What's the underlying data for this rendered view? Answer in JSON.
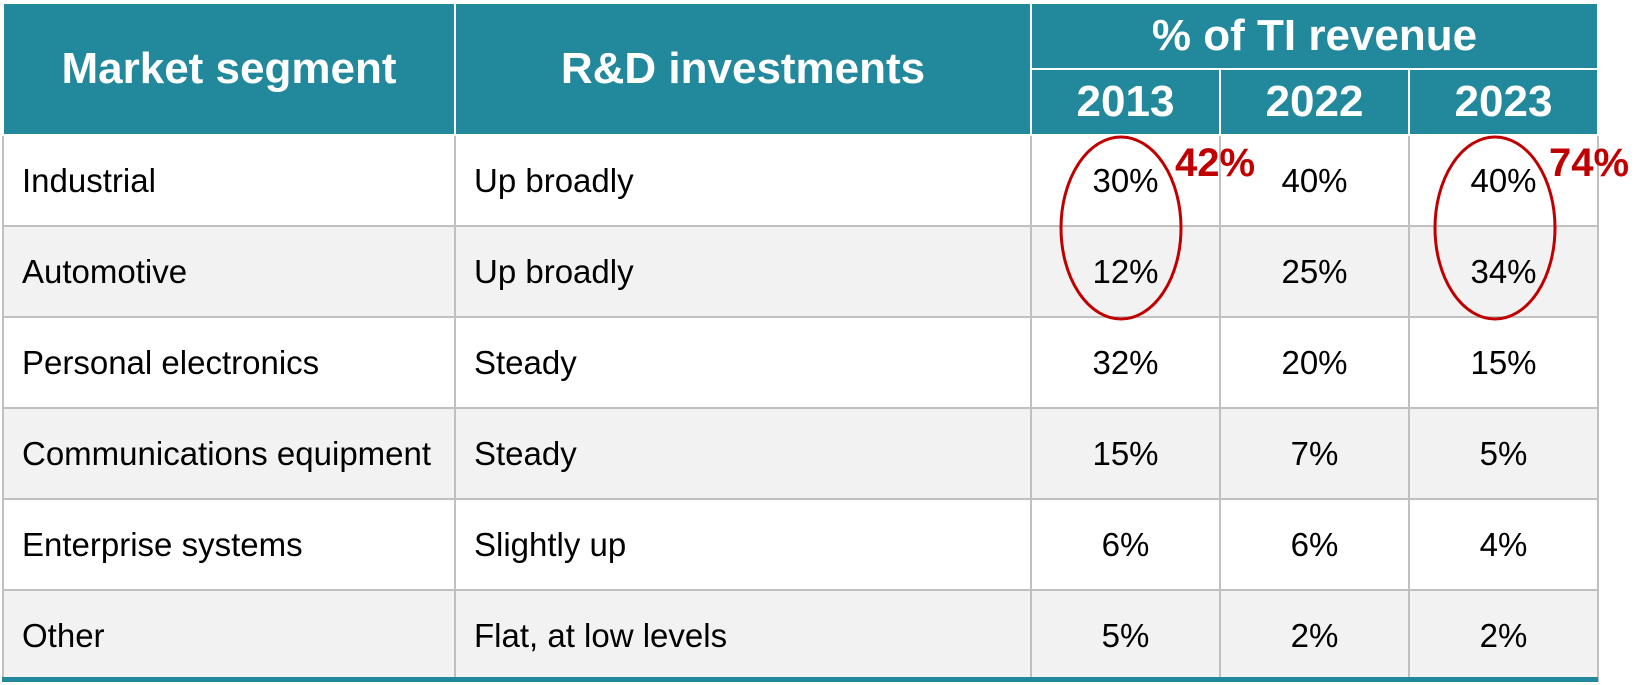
{
  "table": {
    "header": {
      "segment": "Market segment",
      "rd": "R&D investments",
      "group": "% of TI revenue",
      "years": [
        "2013",
        "2022",
        "2023"
      ]
    },
    "rows": [
      {
        "segment": "Industrial",
        "rd": "Up broadly",
        "values": [
          "30%",
          "40%",
          "40%"
        ]
      },
      {
        "segment": "Automotive",
        "rd": "Up broadly",
        "values": [
          "12%",
          "25%",
          "34%"
        ]
      },
      {
        "segment": "Personal electronics",
        "rd": "Steady",
        "values": [
          "32%",
          "20%",
          "15%"
        ]
      },
      {
        "segment": "Communications equipment",
        "rd": "Steady",
        "values": [
          "15%",
          "7%",
          "5%"
        ]
      },
      {
        "segment": "Enterprise systems",
        "rd": "Slightly up",
        "values": [
          "6%",
          "6%",
          "4%"
        ]
      },
      {
        "segment": "Other",
        "rd": "Flat, at low levels",
        "values": [
          "5%",
          "2%",
          "2%"
        ]
      }
    ]
  },
  "annotations": {
    "callout_2013": "42%",
    "callout_2023": "74%"
  },
  "colors": {
    "header_bg": "#22889b",
    "header_text": "#ffffff",
    "callout": "#c00000",
    "row_alt": "#f2f2f2",
    "grid": "#c0c0c0"
  },
  "chart_data": {
    "type": "table",
    "columns": [
      "Market segment",
      "R&D investments",
      "2013",
      "2022",
      "2023"
    ],
    "column_group": "% of TI revenue",
    "rows": [
      [
        "Industrial",
        "Up broadly",
        30,
        40,
        40
      ],
      [
        "Automotive",
        "Up broadly",
        12,
        25,
        34
      ],
      [
        "Personal electronics",
        "Steady",
        32,
        20,
        15
      ],
      [
        "Communications equipment",
        "Steady",
        15,
        7,
        5
      ],
      [
        "Enterprise systems",
        "Slightly up",
        6,
        6,
        4
      ],
      [
        "Other",
        "Flat, at low levels",
        5,
        2,
        2
      ]
    ],
    "annotations": [
      {
        "text": "42%",
        "target": "Industrial + Automotive, 2013"
      },
      {
        "text": "74%",
        "target": "Industrial + Automotive, 2023"
      }
    ]
  }
}
